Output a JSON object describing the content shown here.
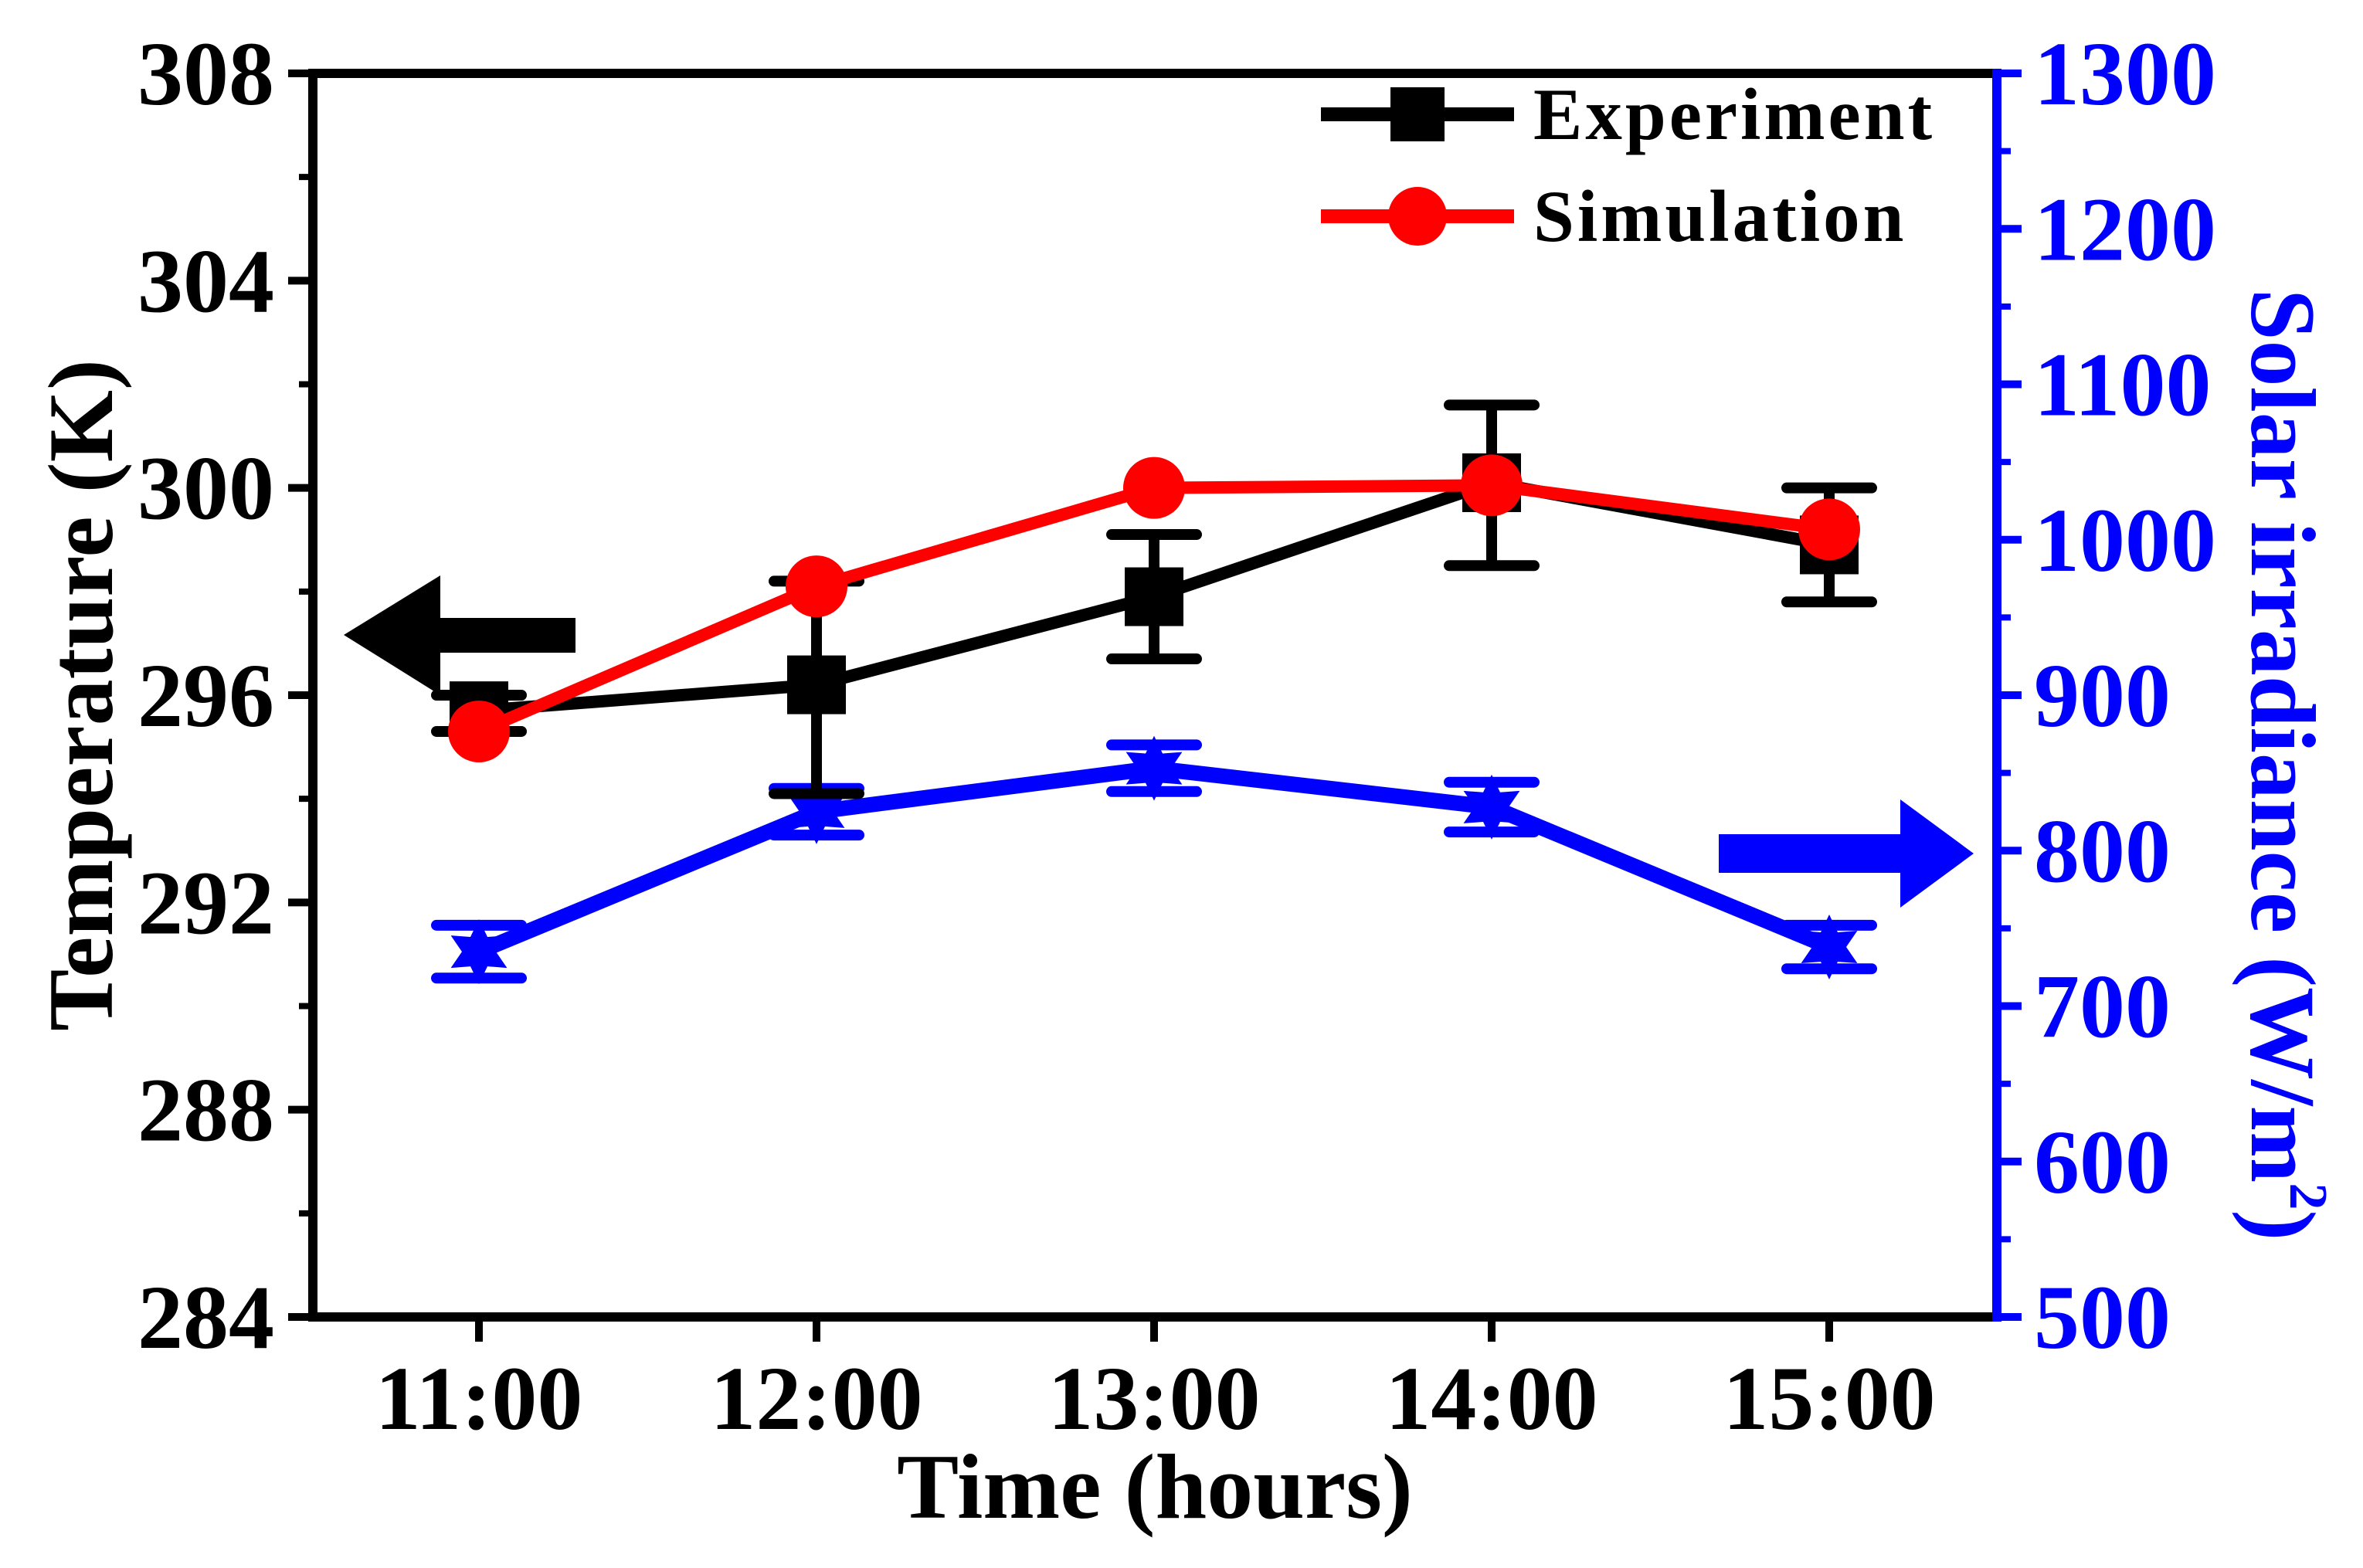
{
  "chart_data": {
    "type": "line",
    "xlabel": "Time (hours)",
    "categories": [
      "11:00",
      "12:00",
      "13:00",
      "14:00",
      "15:00"
    ],
    "left_axis": {
      "label": "Temperature (K)",
      "range": [
        284,
        308
      ],
      "ticks": [
        "284",
        "288",
        "292",
        "296",
        "300",
        "304",
        "308"
      ],
      "color": "#000000"
    },
    "right_axis": {
      "label": "Solar irradiance (W/m",
      "label_superscript": "2",
      "label_close": ")",
      "range": [
        500,
        1300
      ],
      "ticks": [
        "500",
        "600",
        "700",
        "800",
        "900",
        "1000",
        "1100",
        "1200",
        "1300"
      ],
      "color": "#0000ff"
    },
    "series": [
      {
        "name": "Experiment",
        "axis": "left",
        "color": "#000000",
        "marker": "square",
        "values": [
          295.7,
          296.2,
          297.9,
          300.1,
          298.9
        ],
        "error_low": [
          295.3,
          294.1,
          296.7,
          298.5,
          297.8
        ],
        "error_high": [
          296.0,
          298.2,
          299.1,
          301.6,
          300.0
        ]
      },
      {
        "name": "Simulation",
        "axis": "left",
        "color": "#ff0000",
        "marker": "circle",
        "values": [
          295.3,
          298.1,
          300.0,
          300.05,
          299.2
        ]
      },
      {
        "name": "Solar irradiance",
        "axis": "right",
        "color": "#0000ff",
        "marker": "star",
        "values": [
          735,
          825,
          853,
          828,
          738
        ],
        "error_low": [
          718,
          810,
          838,
          812,
          724
        ],
        "error_high": [
          752,
          840,
          868,
          844,
          752
        ]
      }
    ],
    "legend": {
      "position": "top-right",
      "entries": [
        "Experiment",
        "Simulation"
      ]
    },
    "annotations": [
      {
        "type": "arrow",
        "direction": "left",
        "points_to": "left axis",
        "color": "#000000"
      },
      {
        "type": "arrow",
        "direction": "right",
        "points_to": "right axis",
        "color": "#0000ff"
      }
    ]
  }
}
